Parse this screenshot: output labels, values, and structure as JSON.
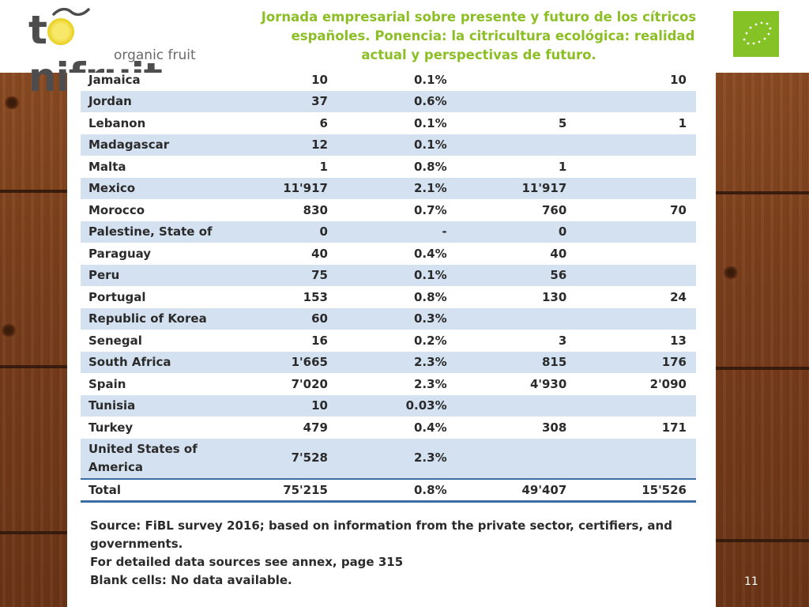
{
  "header": {
    "logo": {
      "brand": "tonifruit",
      "tagline": "organic fruit"
    },
    "title_lines": [
      "Jornada empresarial sobre presente y futuro de los cítricos",
      "españoles. Ponencia: la citricultura ecológica: realidad",
      "actual y perspectivas de futuro."
    ]
  },
  "table": {
    "rows": [
      {
        "country": "Jamaica",
        "area": "10",
        "share": "0.1%",
        "col3": "",
        "col4": "10"
      },
      {
        "country": "Jordan",
        "area": "37",
        "share": "0.6%",
        "col3": "",
        "col4": ""
      },
      {
        "country": "Lebanon",
        "area": "6",
        "share": "0.1%",
        "col3": "5",
        "col4": "1"
      },
      {
        "country": "Madagascar",
        "area": "12",
        "share": "0.1%",
        "col3": "",
        "col4": ""
      },
      {
        "country": "Malta",
        "area": "1",
        "share": "0.8%",
        "col3": "1",
        "col4": ""
      },
      {
        "country": "Mexico",
        "area": "11'917",
        "share": "2.1%",
        "col3": "11'917",
        "col4": ""
      },
      {
        "country": "Morocco",
        "area": "830",
        "share": "0.7%",
        "col3": "760",
        "col4": "70"
      },
      {
        "country": "Palestine, State of",
        "area": "0",
        "share": "-",
        "col3": "0",
        "col4": ""
      },
      {
        "country": "Paraguay",
        "area": "40",
        "share": "0.4%",
        "col3": "40",
        "col4": ""
      },
      {
        "country": "Peru",
        "area": "75",
        "share": "0.1%",
        "col3": "56",
        "col4": ""
      },
      {
        "country": "Portugal",
        "area": "153",
        "share": "0.8%",
        "col3": "130",
        "col4": "24"
      },
      {
        "country": "Republic of Korea",
        "area": "60",
        "share": "0.3%",
        "col3": "",
        "col4": ""
      },
      {
        "country": "Senegal",
        "area": "16",
        "share": "0.2%",
        "col3": "3",
        "col4": "13"
      },
      {
        "country": "South Africa",
        "area": "1'665",
        "share": "2.3%",
        "col3": "815",
        "col4": "176"
      },
      {
        "country": "Spain",
        "area": "7'020",
        "share": "2.3%",
        "col3": "4'930",
        "col4": "2'090"
      },
      {
        "country": "Tunisia",
        "area": "10",
        "share": "0.03%",
        "col3": "",
        "col4": ""
      },
      {
        "country": "Turkey",
        "area": "479",
        "share": "0.4%",
        "col3": "308",
        "col4": "171"
      }
    ],
    "usa": {
      "line1": "United States of",
      "line2": "America",
      "area": "7'528",
      "share": "2.3%",
      "col3": "",
      "col4": ""
    },
    "total": {
      "label": "Total",
      "area": "75'215",
      "share": "0.8%",
      "col3": "49'407",
      "col4": "15'526"
    }
  },
  "source": {
    "line1": "Source: FiBL survey 2016; based on information from the private sector, certifiers, and governments.",
    "line2": "For detailed data sources see annex, page 315",
    "line3": "Blank cells: No data available."
  },
  "page_number": "11",
  "colors": {
    "title_green": "#8cbf26",
    "row_alt": "#d4e1f0",
    "rule_blue": "#3a6ea5",
    "eu_green": "#84c226"
  }
}
